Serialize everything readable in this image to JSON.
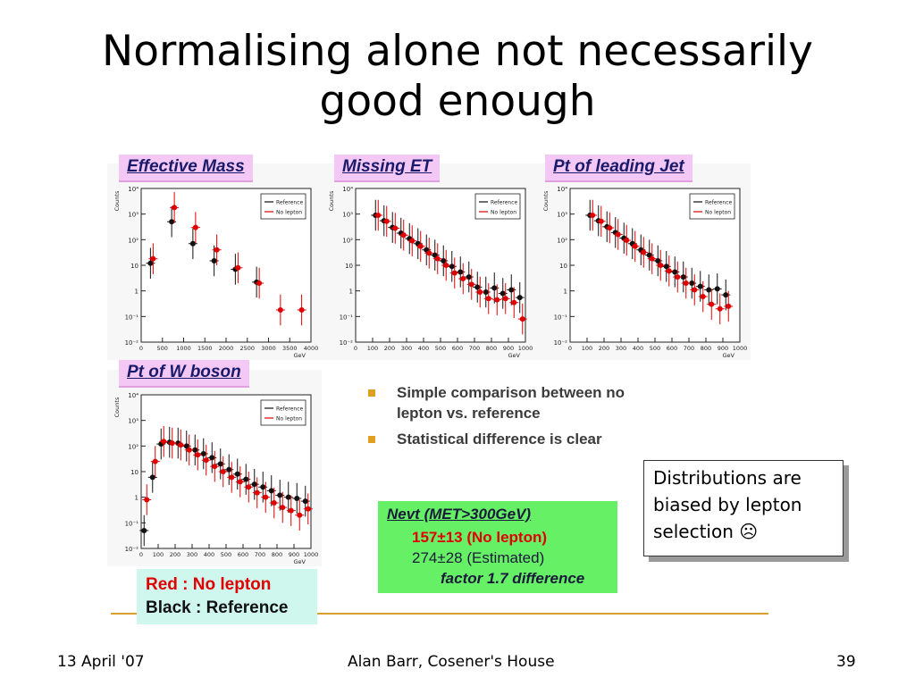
{
  "slide": {
    "title_line1": "Normalising alone not necessarily",
    "title_line2": "good enough",
    "footer_left": "13 April '07",
    "footer_center": "Alan Barr, Cosener's House",
    "footer_right": "39"
  },
  "bullets": [
    "Simple comparison between no lepton vs. reference",
    "Statistical difference is clear"
  ],
  "callout": "Distributions are biased by lepton selection ☹",
  "nevt": {
    "heading": "Nevt (MET>300GeV)",
    "no_lepton": "157±13 (No lepton)",
    "estimated": "274±28 (Estimated)",
    "factor": "factor 1.7 difference",
    "no_lepton_color": "#e00000"
  },
  "legend_box": {
    "red": "Red : No lepton",
    "black": "Black : Reference",
    "red_color": "#e00000",
    "black_color": "#111111"
  },
  "chart_data": [
    {
      "type": "scatter",
      "title": "Effective Mass",
      "xlabel": "GeV",
      "ylabel": "Counts",
      "log_y": true,
      "ylim": [
        0.01,
        10000
      ],
      "y_tick_labels": [
        "10⁻²",
        "10⁻¹",
        "1",
        "10",
        "10²",
        "10³",
        "10⁴"
      ],
      "xlim": [
        0,
        4000
      ],
      "x_ticks": [
        0,
        500,
        1000,
        1500,
        2000,
        2500,
        3000,
        3500,
        4000
      ],
      "legend": [
        "Reference",
        "No lepton"
      ],
      "series": [
        {
          "name": "Reference",
          "color": "#111111",
          "x": [
            250,
            750,
            1250,
            1750,
            2250,
            2750
          ],
          "y": [
            12,
            500,
            70,
            15,
            7,
            2.2
          ]
        },
        {
          "name": "No lepton",
          "color": "#e00000",
          "x": [
            250,
            750,
            1250,
            1750,
            2250,
            2750,
            3250,
            3750
          ],
          "y": [
            18,
            1800,
            300,
            40,
            8,
            2,
            0.18,
            0.18
          ]
        }
      ]
    },
    {
      "type": "scatter",
      "title": "Missing ET",
      "xlabel": "GeV",
      "ylabel": "Counts",
      "log_y": true,
      "ylim": [
        0.01,
        10000
      ],
      "y_tick_labels": [
        "10⁻²",
        "10⁻¹",
        "1",
        "10",
        "10²",
        "10³",
        "10⁴"
      ],
      "xlim": [
        0,
        1000
      ],
      "x_ticks": [
        0,
        100,
        200,
        300,
        400,
        500,
        600,
        700,
        800,
        900,
        1000
      ],
      "legend": [
        "Reference",
        "No lepton"
      ],
      "series": [
        {
          "name": "Reference",
          "color": "#111111",
          "x": [
            125,
            175,
            225,
            275,
            325,
            375,
            425,
            475,
            525,
            575,
            625,
            675,
            725,
            775,
            825,
            875,
            925,
            975
          ],
          "y": [
            900,
            550,
            300,
            180,
            110,
            70,
            40,
            25,
            15,
            9,
            5.5,
            3.5,
            1.4,
            0.9,
            1.3,
            0.8,
            1.1,
            0.55
          ]
        },
        {
          "name": "No lepton",
          "color": "#e00000",
          "x": [
            125,
            175,
            225,
            275,
            325,
            375,
            425,
            475,
            525,
            575,
            625,
            675,
            725,
            775,
            825,
            875,
            925,
            975
          ],
          "y": [
            900,
            520,
            280,
            150,
            90,
            55,
            30,
            18,
            10,
            5,
            3,
            1.8,
            0.9,
            0.5,
            0.45,
            0.5,
            0.35,
            0.08
          ]
        }
      ]
    },
    {
      "type": "scatter",
      "title": "Pt of leading Jet",
      "xlabel": "GeV",
      "ylabel": "Counts",
      "log_y": true,
      "ylim": [
        0.01,
        10000
      ],
      "y_tick_labels": [
        "10⁻²",
        "10⁻¹",
        "1",
        "10",
        "10²",
        "10³",
        "10⁴"
      ],
      "xlim": [
        0,
        1000
      ],
      "x_ticks": [
        0,
        100,
        200,
        300,
        400,
        500,
        600,
        700,
        800,
        900,
        1000
      ],
      "legend": [
        "Reference",
        "No lepton"
      ],
      "series": [
        {
          "name": "Reference",
          "color": "#111111",
          "x": [
            125,
            175,
            225,
            275,
            325,
            375,
            425,
            475,
            525,
            575,
            625,
            675,
            725,
            775,
            825,
            875,
            925
          ],
          "y": [
            900,
            550,
            320,
            190,
            115,
            70,
            40,
            25,
            15,
            9,
            5.5,
            3.5,
            2,
            1.5,
            1.1,
            1.2,
            0.7
          ]
        },
        {
          "name": "No lepton",
          "color": "#e00000",
          "x": [
            125,
            175,
            225,
            275,
            325,
            375,
            425,
            475,
            525,
            575,
            625,
            675,
            725,
            775,
            825,
            875,
            925
          ],
          "y": [
            900,
            520,
            290,
            160,
            95,
            55,
            32,
            18,
            10,
            6,
            3.5,
            2,
            1.1,
            0.6,
            0.3,
            0.2,
            0.25
          ]
        }
      ]
    },
    {
      "type": "scatter",
      "title": "Pt of W boson",
      "xlabel": "GeV",
      "ylabel": "Counts",
      "log_y": true,
      "ylim": [
        0.01,
        10000
      ],
      "y_tick_labels": [
        "10⁻²",
        "10⁻¹",
        "1",
        "10",
        "10²",
        "10³",
        "10⁴"
      ],
      "xlim": [
        0,
        1000
      ],
      "x_ticks": [
        0,
        100,
        200,
        300,
        400,
        500,
        600,
        700,
        800,
        900,
        1000
      ],
      "legend": [
        "Reference",
        "No lepton"
      ],
      "series": [
        {
          "name": "Reference",
          "color": "#111111",
          "x": [
            25,
            75,
            125,
            175,
            225,
            275,
            325,
            375,
            425,
            475,
            525,
            575,
            625,
            675,
            725,
            775,
            825,
            875,
            925,
            975
          ],
          "y": [
            0.05,
            6,
            120,
            140,
            130,
            100,
            70,
            50,
            35,
            20,
            12,
            8,
            5,
            3.2,
            2.5,
            1.8,
            1.2,
            1,
            0.9,
            0.7
          ]
        },
        {
          "name": "No lepton",
          "color": "#e00000",
          "x": [
            25,
            75,
            125,
            175,
            225,
            275,
            325,
            375,
            425,
            475,
            525,
            575,
            625,
            675,
            725,
            775,
            825,
            875,
            925,
            975
          ],
          "y": [
            0.8,
            25,
            150,
            130,
            110,
            70,
            45,
            28,
            16,
            10,
            6,
            4,
            2.5,
            1.5,
            1,
            0.6,
            0.4,
            0.3,
            0.2,
            0.35
          ]
        }
      ]
    }
  ]
}
